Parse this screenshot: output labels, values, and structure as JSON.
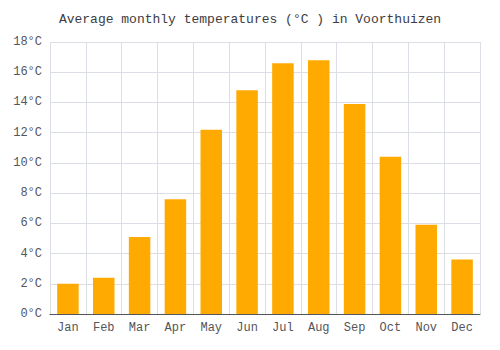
{
  "chart_data": {
    "type": "bar",
    "title": "Average monthly temperatures (°C ) in Voorthuizen",
    "categories": [
      "Jan",
      "Feb",
      "Mar",
      "Apr",
      "May",
      "Jun",
      "Jul",
      "Aug",
      "Sep",
      "Oct",
      "Nov",
      "Dec"
    ],
    "values": [
      2.0,
      2.4,
      5.1,
      7.6,
      12.2,
      14.8,
      16.6,
      16.8,
      13.9,
      10.4,
      5.9,
      3.6
    ],
    "color": "#FFAA00",
    "ylim": [
      0,
      18
    ],
    "yticks": [
      {
        "value": 0,
        "label": "0°C"
      },
      {
        "value": 2,
        "label": "2°C"
      },
      {
        "value": 4,
        "label": "4°C"
      },
      {
        "value": 6,
        "label": "6°C"
      },
      {
        "value": 8,
        "label": "8°C"
      },
      {
        "value": 10,
        "label": "10°C"
      },
      {
        "value": 12,
        "label": "12°C"
      },
      {
        "value": 14,
        "label": "14°C"
      },
      {
        "value": 16,
        "label": "16°C"
      },
      {
        "value": 18,
        "label": "18°C"
      }
    ],
    "grid": true
  }
}
